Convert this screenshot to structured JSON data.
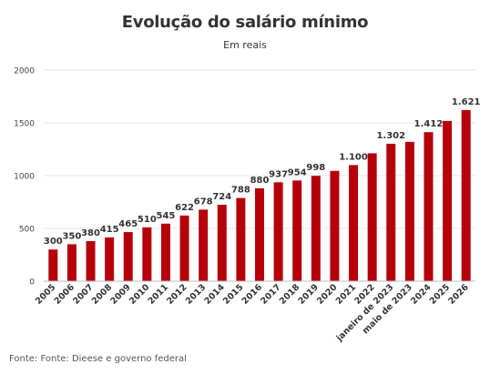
{
  "header": {
    "title": "Evolução do salário mínimo",
    "subtitle": "Em reais"
  },
  "footer": {
    "source": "Fonte: Fonte: Dieese e governo federal"
  },
  "colors": {
    "bar": "#b5000b",
    "grid": "#e6e6e6",
    "axis": "#bdbdbd",
    "text": "#333333"
  },
  "chart_data": {
    "type": "bar",
    "title": "Evolução do salário mínimo",
    "subtitle": "Em reais",
    "categories": [
      "2005",
      "2006",
      "2007",
      "2008",
      "2009",
      "2010",
      "2011",
      "2012",
      "2013",
      "2014",
      "2015",
      "2016",
      "2017",
      "2018",
      "2019",
      "2020",
      "2021",
      "2022",
      "janeiro de 2023",
      "maio de 2023",
      "2024",
      "2025",
      "2026"
    ],
    "values": [
      300,
      350,
      380,
      415,
      465,
      510,
      545,
      622,
      678,
      724,
      788,
      880,
      937,
      954,
      998,
      1045,
      1100,
      1212,
      1302,
      1320,
      1412,
      1518,
      1621
    ],
    "data_labels": [
      "300",
      "350",
      "380",
      "415",
      "465",
      "510",
      "545",
      "622",
      "678",
      "724",
      "788",
      "880",
      "937",
      "954",
      "998",
      "",
      "1.100",
      "",
      "1.302",
      "",
      "1.412",
      "",
      "1.621"
    ],
    "ylim": [
      0,
      2000
    ],
    "yticks": [
      0,
      500,
      1000,
      1500,
      2000
    ],
    "grid": true,
    "legend": "none"
  }
}
